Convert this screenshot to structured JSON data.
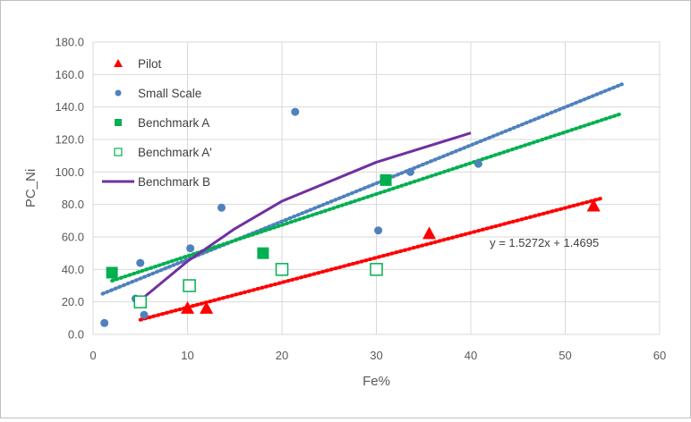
{
  "chart_data": {
    "type": "scatter",
    "title": "",
    "xlabel": "Fe%",
    "ylabel": "PC_Ni",
    "xlim": [
      0,
      60
    ],
    "ylim": [
      0,
      180
    ],
    "x_ticks": [
      0,
      10,
      20,
      30,
      40,
      50,
      60
    ],
    "y_ticks": [
      0,
      20,
      40,
      60,
      80,
      100,
      120,
      140,
      160,
      180
    ],
    "x_tick_labels": [
      "0",
      "10",
      "20",
      "30",
      "40",
      "50",
      "60"
    ],
    "y_tick_labels": [
      "0.0",
      "20.0",
      "40.0",
      "60.0",
      "80.0",
      "100.0",
      "120.0",
      "140.0",
      "160.0",
      "180.0"
    ],
    "grid": "major gridlines",
    "legend_position": "top-left inside plot",
    "series": [
      {
        "name": "Pilot",
        "marker": "triangle",
        "color": "#ff0000",
        "points": [
          [
            10,
            16
          ],
          [
            12,
            16
          ],
          [
            35.6,
            62
          ],
          [
            53,
            79
          ]
        ]
      },
      {
        "name": "Small Scale",
        "marker": "circle",
        "color": "#4f81bd",
        "points": [
          [
            1.2,
            7
          ],
          [
            4.5,
            22
          ],
          [
            5,
            44
          ],
          [
            5.4,
            12
          ],
          [
            10.3,
            53
          ],
          [
            13.6,
            78
          ],
          [
            21.4,
            137
          ],
          [
            30.2,
            64
          ],
          [
            33.6,
            100
          ],
          [
            40.8,
            105
          ]
        ]
      },
      {
        "name": "Benchmark A",
        "marker": "square-filled",
        "color": "#00b050",
        "points": [
          [
            2,
            38
          ],
          [
            18,
            50
          ],
          [
            31,
            95
          ]
        ]
      },
      {
        "name": "Benchmark A'",
        "marker": "square-open",
        "color": "#00b050",
        "points": [
          [
            5,
            20
          ],
          [
            10.2,
            30
          ],
          [
            20,
            40
          ],
          [
            30,
            40
          ]
        ]
      },
      {
        "name": "Benchmark B",
        "marker": "line",
        "color": "#7030a0",
        "points": [
          [
            5,
            21
          ],
          [
            10,
            45
          ],
          [
            15,
            65
          ],
          [
            20,
            82
          ],
          [
            25,
            94
          ],
          [
            30,
            106
          ],
          [
            35,
            115
          ],
          [
            40,
            124
          ]
        ]
      }
    ],
    "trendlines": [
      {
        "series": "Small Scale",
        "color": "#4f81bd",
        "x": [
          1,
          56
        ],
        "y": [
          25,
          154
        ]
      },
      {
        "series": "Benchmark A",
        "color": "#00b050",
        "x": [
          2,
          56
        ],
        "y": [
          33,
          136
        ]
      },
      {
        "series": "Pilot",
        "color": "#ff0000",
        "x": [
          5,
          54
        ],
        "y": [
          9,
          84
        ]
      }
    ],
    "annotations": [
      {
        "text": "y = 1.5272x + 1.4695",
        "x": 42,
        "y": 54
      }
    ]
  }
}
